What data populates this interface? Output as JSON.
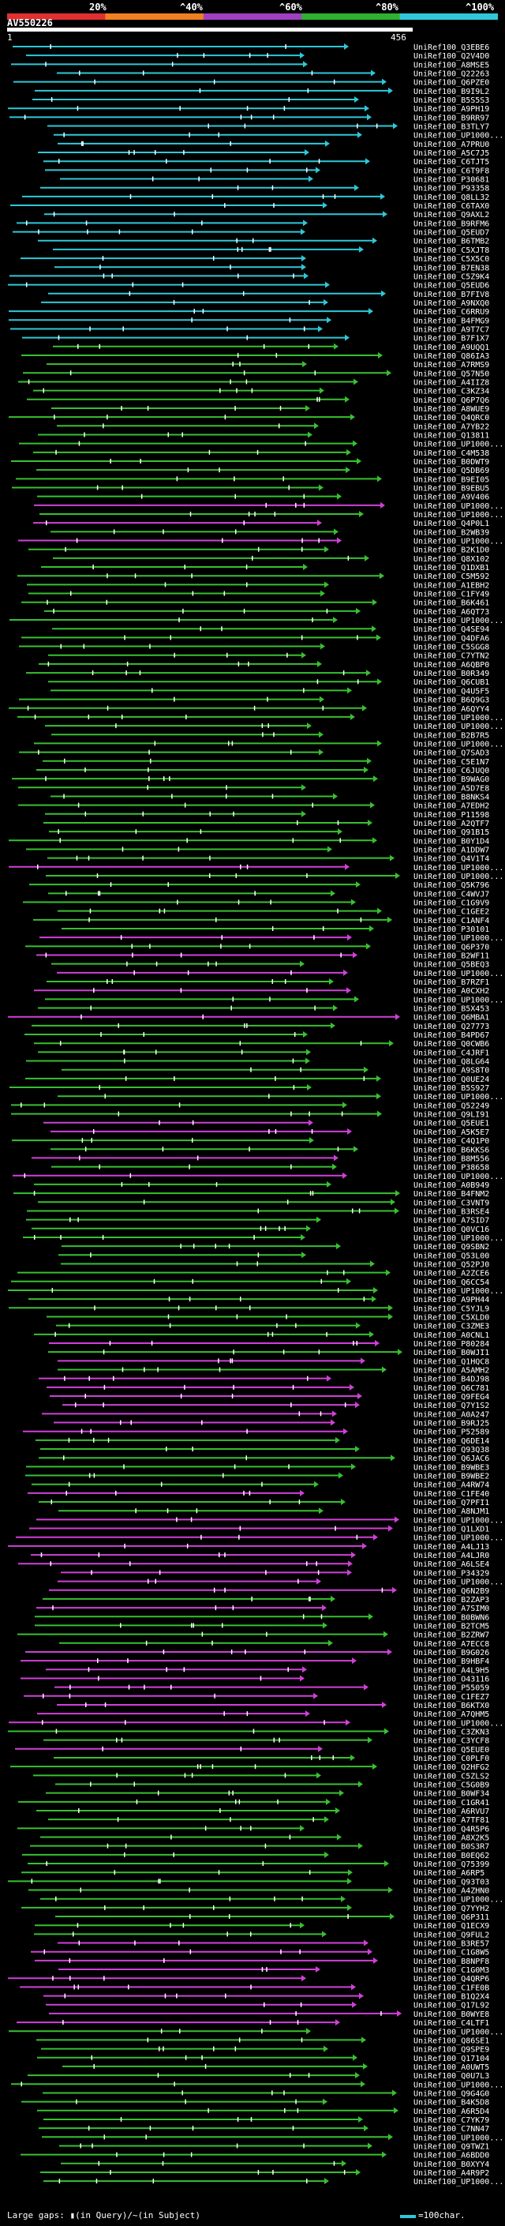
{
  "header": {
    "percent_labels": [
      "20%",
      "^40%",
      "^60%",
      "^80%",
      "^100%"
    ],
    "legend_colors": [
      "#e03030",
      "#f08020",
      "#a040c0",
      "#30b030",
      "#30c8d8"
    ],
    "query_name": "AV550226",
    "coord_start": "1",
    "coord_end": "456"
  },
  "footer": {
    "note": "Large gaps: ▮(in Query)/~(in Subject)",
    "scale_label": "=100char."
  },
  "colors": {
    "cyan": "#2ec8d8",
    "green": "#38c030",
    "magenta": "#d040d8",
    "tick": "#ffffff"
  },
  "hits": [
    {
      "label": "UniRef100_Q3EBE6",
      "color": "cyan"
    },
    {
      "label": "UniRef100_Q2V4D0",
      "color": "cyan"
    },
    {
      "label": "UniRef100_A8MSE5",
      "color": "cyan"
    },
    {
      "label": "UniRef100_Q22263",
      "color": "cyan"
    },
    {
      "label": "UniRef100_Q6PZE0",
      "color": "cyan"
    },
    {
      "label": "UniRef100_B9I9L2",
      "color": "cyan"
    },
    {
      "label": "UniRef100_B5S5S3",
      "color": "cyan"
    },
    {
      "label": "UniRef100_A9PH19",
      "color": "cyan"
    },
    {
      "label": "UniRef100_B9RR97",
      "color": "cyan"
    },
    {
      "label": "UniRef100_B3TLY7",
      "color": "cyan"
    },
    {
      "label": "UniRef100_UP1000...",
      "color": "cyan"
    },
    {
      "label": "UniRef100_A7PRU0",
      "color": "cyan"
    },
    {
      "label": "UniRef100_A5C7J5",
      "color": "cyan"
    },
    {
      "label": "UniRef100_C6TJT5",
      "color": "cyan"
    },
    {
      "label": "UniRef100_C6T9F8",
      "color": "cyan"
    },
    {
      "label": "UniRef100_P30681",
      "color": "cyan"
    },
    {
      "label": "UniRef100_P93358",
      "color": "cyan"
    },
    {
      "label": "UniRef100_Q8LL32",
      "color": "cyan"
    },
    {
      "label": "UniRef100_C6TAX0",
      "color": "cyan"
    },
    {
      "label": "UniRef100_Q9AXL2",
      "color": "cyan"
    },
    {
      "label": "UniRef100_B9RFM6",
      "color": "cyan"
    },
    {
      "label": "UniRef100_Q5EUD7",
      "color": "cyan"
    },
    {
      "label": "UniRef100_B6TMB2",
      "color": "cyan"
    },
    {
      "label": "UniRef100_C5XJT8",
      "color": "cyan"
    },
    {
      "label": "UniRef100_C5X5C0",
      "color": "cyan"
    },
    {
      "label": "UniRef100_B7EN38",
      "color": "cyan"
    },
    {
      "label": "UniRef100_C5Z9K4",
      "color": "cyan"
    },
    {
      "label": "UniRef100_Q5EUD6",
      "color": "cyan"
    },
    {
      "label": "UniRef100_B7FIV8",
      "color": "cyan"
    },
    {
      "label": "UniRef100_A9NXQ0",
      "color": "cyan"
    },
    {
      "label": "UniRef100_C6RRU9",
      "color": "cyan"
    },
    {
      "label": "UniRef100_B4FMG9",
      "color": "cyan"
    },
    {
      "label": "UniRef100_A9T7C7",
      "color": "cyan"
    },
    {
      "label": "UniRef100_B7F1X7",
      "color": "cyan"
    },
    {
      "label": "UniRef100_A9UQQ1",
      "color": "green"
    },
    {
      "label": "UniRef100_Q86IA3",
      "color": "green"
    },
    {
      "label": "UniRef100_A7RMS9",
      "color": "green"
    },
    {
      "label": "UniRef100_Q57N50",
      "color": "green"
    },
    {
      "label": "UniRef100_A4IIZ8",
      "color": "green"
    },
    {
      "label": "UniRef100_C3KZ34",
      "color": "green"
    },
    {
      "label": "UniRef100_Q6P7Q6",
      "color": "green"
    },
    {
      "label": "UniRef100_A8WUE9",
      "color": "green"
    },
    {
      "label": "UniRef100_Q4QRC0",
      "color": "green"
    },
    {
      "label": "UniRef100_A7YB22",
      "color": "green"
    },
    {
      "label": "UniRef100_Q13811",
      "color": "green"
    },
    {
      "label": "UniRef100_UP1000...",
      "color": "green"
    },
    {
      "label": "UniRef100_C4M538",
      "color": "green"
    },
    {
      "label": "UniRef100_B0DWT9",
      "color": "green"
    },
    {
      "label": "UniRef100_Q5DB69",
      "color": "green"
    },
    {
      "label": "UniRef100_B9EI05",
      "color": "green"
    },
    {
      "label": "UniRef100_B9EBU5",
      "color": "green"
    },
    {
      "label": "UniRef100_A9V406",
      "color": "green"
    },
    {
      "label": "UniRef100_UP1000...",
      "color": "magenta"
    },
    {
      "label": "UniRef100_UP1000...",
      "color": "green"
    },
    {
      "label": "UniRef100_Q4P0L1",
      "color": "magenta"
    },
    {
      "label": "UniRef100_B2WB39",
      "color": "green"
    },
    {
      "label": "UniRef100_UP1000...",
      "color": "magenta"
    },
    {
      "label": "UniRef100_B2K1D0",
      "color": "green"
    },
    {
      "label": "UniRef100_Q8X102",
      "color": "green"
    },
    {
      "label": "UniRef100_Q1DXB1",
      "color": "green"
    },
    {
      "label": "UniRef100_C5M592",
      "color": "green"
    },
    {
      "label": "UniRef100_A1EBH2",
      "color": "green"
    },
    {
      "label": "UniRef100_C1FY49",
      "color": "green"
    },
    {
      "label": "UniRef100_B6K461",
      "color": "green"
    },
    {
      "label": "UniRef100_A6QT73",
      "color": "green"
    },
    {
      "label": "UniRef100_UP1000...",
      "color": "green"
    },
    {
      "label": "UniRef100_Q4SE94",
      "color": "green"
    },
    {
      "label": "UniRef100_Q4DFA6",
      "color": "green"
    },
    {
      "label": "UniRef100_C5SGG8",
      "color": "green"
    },
    {
      "label": "UniRef100_C7YTN2",
      "color": "green"
    },
    {
      "label": "UniRef100_A6QBP0",
      "color": "green"
    },
    {
      "label": "UniRef100_B0R349",
      "color": "green"
    },
    {
      "label": "UniRef100_Q6CUB1",
      "color": "green"
    },
    {
      "label": "UniRef100_Q4U5F5",
      "color": "green"
    },
    {
      "label": "UniRef100_B6Q9G3",
      "color": "green"
    },
    {
      "label": "UniRef100_A6QYY4",
      "color": "green"
    },
    {
      "label": "UniRef100_UP1000...",
      "color": "green"
    },
    {
      "label": "UniRef100_UP1000...",
      "color": "green"
    },
    {
      "label": "UniRef100_B2B7R5",
      "color": "green"
    },
    {
      "label": "UniRef100_UP1000...",
      "color": "green"
    },
    {
      "label": "UniRef100_Q7SAD3",
      "color": "green"
    },
    {
      "label": "UniRef100_C5E1N7",
      "color": "green"
    },
    {
      "label": "UniRef100_C6JUQ0",
      "color": "green"
    },
    {
      "label": "UniRef100_B9WAG0",
      "color": "green"
    },
    {
      "label": "UniRef100_A5D7E8",
      "color": "green"
    },
    {
      "label": "UniRef100_B8NKS4",
      "color": "green"
    },
    {
      "label": "UniRef100_A7EDH2",
      "color": "green"
    },
    {
      "label": "UniRef100_P11598",
      "color": "green"
    },
    {
      "label": "UniRef100_A2QTF7",
      "color": "green"
    },
    {
      "label": "UniRef100_Q91B15",
      "color": "green"
    },
    {
      "label": "UniRef100_B0Y1D4",
      "color": "green"
    },
    {
      "label": "UniRef100_A1DDW7",
      "color": "green"
    },
    {
      "label": "UniRef100_Q4V1T4",
      "color": "green"
    },
    {
      "label": "UniRef100_UP1000...",
      "color": "magenta"
    },
    {
      "label": "UniRef100_UP1000...",
      "color": "green"
    },
    {
      "label": "UniRef100_Q5K796",
      "color": "green"
    },
    {
      "label": "UniRef100_C4WVJ7",
      "color": "green"
    },
    {
      "label": "UniRef100_C1G9V9",
      "color": "green"
    },
    {
      "label": "UniRef100_C1GEE2",
      "color": "green"
    },
    {
      "label": "UniRef100_C1ANF4",
      "color": "green"
    },
    {
      "label": "UniRef100_P30101",
      "color": "green"
    },
    {
      "label": "UniRef100_UP1000...",
      "color": "magenta"
    },
    {
      "label": "UniRef100_Q6P370",
      "color": "green"
    },
    {
      "label": "UniRef100_B2WF11",
      "color": "magenta"
    },
    {
      "label": "UniRef100_Q5BEQ3",
      "color": "green"
    },
    {
      "label": "UniRef100_UP1000...",
      "color": "magenta"
    },
    {
      "label": "UniRef100_B7RZF1",
      "color": "green"
    },
    {
      "label": "UniRef100_A0CXH2",
      "color": "magenta"
    },
    {
      "label": "UniRef100_UP1000...",
      "color": "green"
    },
    {
      "label": "UniRef100_B5X453",
      "color": "green"
    },
    {
      "label": "UniRef100_Q6MBA1",
      "color": "magenta"
    },
    {
      "label": "UniRef100_Q27773",
      "color": "green"
    },
    {
      "label": "UniRef100_B4PD67",
      "color": "green"
    },
    {
      "label": "UniRef100_Q0CWB6",
      "color": "green"
    },
    {
      "label": "UniRef100_C4JRF1",
      "color": "green"
    },
    {
      "label": "UniRef100_Q8LG64",
      "color": "green"
    },
    {
      "label": "UniRef100_A9S8T0",
      "color": "green"
    },
    {
      "label": "UniRef100_Q0UE24",
      "color": "green"
    },
    {
      "label": "UniRef100_B5S927",
      "color": "green"
    },
    {
      "label": "UniRef100_UP1000...",
      "color": "green"
    },
    {
      "label": "UniRef100_Q52249",
      "color": "green"
    },
    {
      "label": "UniRef100_Q9LI91",
      "color": "green"
    },
    {
      "label": "UniRef100_Q5EUE1",
      "color": "magenta"
    },
    {
      "label": "UniRef100_A5K5E7",
      "color": "magenta"
    },
    {
      "label": "UniRef100_C4Q1P0",
      "color": "green"
    },
    {
      "label": "UniRef100_B6KKS6",
      "color": "green"
    },
    {
      "label": "UniRef100_B8M556",
      "color": "magenta"
    },
    {
      "label": "UniRef100_P38658",
      "color": "green"
    },
    {
      "label": "UniRef100_UP1000...",
      "color": "magenta"
    },
    {
      "label": "UniRef100_A0B949",
      "color": "green"
    },
    {
      "label": "UniRef100_B4FNM2",
      "color": "green"
    },
    {
      "label": "UniRef100_C3VNT9",
      "color": "green"
    },
    {
      "label": "UniRef100_B3RSE4",
      "color": "green"
    },
    {
      "label": "UniRef100_A7SID7",
      "color": "green"
    },
    {
      "label": "UniRef100_Q0VC16",
      "color": "green"
    },
    {
      "label": "UniRef100_UP1000...",
      "color": "green"
    },
    {
      "label": "UniRef100_Q9SBN2",
      "color": "green"
    },
    {
      "label": "UniRef100_Q53L00",
      "color": "green"
    },
    {
      "label": "UniRef100_Q52PJ0",
      "color": "green"
    },
    {
      "label": "UniRef100_A2ZCE6",
      "color": "green"
    },
    {
      "label": "UniRef100_Q6CC54",
      "color": "green"
    },
    {
      "label": "UniRef100_UP1000...",
      "color": "green"
    },
    {
      "label": "UniRef100_A9PH44",
      "color": "green"
    },
    {
      "label": "UniRef100_C5YJL9",
      "color": "green"
    },
    {
      "label": "UniRef100_C5XLD0",
      "color": "green"
    },
    {
      "label": "UniRef100_C3ZME3",
      "color": "green"
    },
    {
      "label": "UniRef100_A0CNL1",
      "color": "green"
    },
    {
      "label": "UniRef100_P80284",
      "color": "magenta"
    },
    {
      "label": "UniRef100_B0WJI1",
      "color": "green"
    },
    {
      "label": "UniRef100_Q1HQC8",
      "color": "magenta"
    },
    {
      "label": "UniRef100_A5AMH2",
      "color": "green"
    },
    {
      "label": "UniRef100_B4DJ98",
      "color": "magenta"
    },
    {
      "label": "UniRef100_Q6C781",
      "color": "magenta"
    },
    {
      "label": "UniRef100_Q9FEG4",
      "color": "magenta"
    },
    {
      "label": "UniRef100_Q7Y1S2",
      "color": "magenta"
    },
    {
      "label": "UniRef100_A0A247",
      "color": "magenta"
    },
    {
      "label": "UniRef100_B9RJ25",
      "color": "magenta"
    },
    {
      "label": "UniRef100_P52589",
      "color": "magenta"
    },
    {
      "label": "UniRef100_Q6DE14",
      "color": "green"
    },
    {
      "label": "UniRef100_Q93Q38",
      "color": "green"
    },
    {
      "label": "UniRef100_Q6JAC6",
      "color": "green"
    },
    {
      "label": "UniRef100_B9WBE3",
      "color": "green"
    },
    {
      "label": "UniRef100_B9WBE2",
      "color": "green"
    },
    {
      "label": "UniRef100_A4RW74",
      "color": "green"
    },
    {
      "label": "UniRef100_C1FE40",
      "color": "magenta"
    },
    {
      "label": "UniRef100_Q7PFI1",
      "color": "green"
    },
    {
      "label": "UniRef100_A8NJM1",
      "color": "green"
    },
    {
      "label": "UniRef100_UP1000...",
      "color": "magenta"
    },
    {
      "label": "UniRef100_Q1LXD1",
      "color": "magenta"
    },
    {
      "label": "UniRef100_UP1000...",
      "color": "magenta"
    },
    {
      "label": "UniRef100_A4LJ13",
      "color": "magenta"
    },
    {
      "label": "UniRef100_A4LJR0",
      "color": "magenta"
    },
    {
      "label": "UniRef100_A6LSE4",
      "color": "magenta"
    },
    {
      "label": "UniRef100_P34329",
      "color": "magenta"
    },
    {
      "label": "UniRef100_UP1000...",
      "color": "magenta"
    },
    {
      "label": "UniRef100_Q6N2B9",
      "color": "magenta"
    },
    {
      "label": "UniRef100_B2ZAP3",
      "color": "green"
    },
    {
      "label": "UniRef100_A7SIM0",
      "color": "magenta"
    },
    {
      "label": "UniRef100_B0BWN6",
      "color": "green"
    },
    {
      "label": "UniRef100_B2TCM5",
      "color": "green"
    },
    {
      "label": "UniRef100_B2ZRW7",
      "color": "green"
    },
    {
      "label": "UniRef100_A7ECC8",
      "color": "green"
    },
    {
      "label": "UniRef100_B9G026",
      "color": "magenta"
    },
    {
      "label": "UniRef100_B9HBF4",
      "color": "magenta"
    },
    {
      "label": "UniRef100_A4L9H5",
      "color": "magenta"
    },
    {
      "label": "UniRef100_O43116",
      "color": "magenta"
    },
    {
      "label": "UniRef100_P55059",
      "color": "magenta"
    },
    {
      "label": "UniRef100_C1FEZ7",
      "color": "magenta"
    },
    {
      "label": "UniRef100_B6KTX0",
      "color": "magenta"
    },
    {
      "label": "UniRef100_A7QHM5",
      "color": "magenta"
    },
    {
      "label": "UniRef100_UP1000...",
      "color": "magenta"
    },
    {
      "label": "UniRef100_C3ZKN3",
      "color": "green"
    },
    {
      "label": "UniRef100_C3YCF8",
      "color": "green"
    },
    {
      "label": "UniRef100_Q5EUE0",
      "color": "magenta"
    },
    {
      "label": "UniRef100_C0PLF0",
      "color": "green"
    },
    {
      "label": "UniRef100_Q2HFG2",
      "color": "green"
    },
    {
      "label": "UniRef100_C5ZLS2",
      "color": "green"
    },
    {
      "label": "UniRef100_C5G0B9",
      "color": "green"
    },
    {
      "label": "UniRef100_B0WF34",
      "color": "green"
    },
    {
      "label": "UniRef100_C1GR41",
      "color": "green"
    },
    {
      "label": "UniRef100_A6RVU7",
      "color": "green"
    },
    {
      "label": "UniRef100_A7TF81",
      "color": "green"
    },
    {
      "label": "UniRef100_Q4R5P6",
      "color": "green"
    },
    {
      "label": "UniRef100_A8X2K5",
      "color": "green"
    },
    {
      "label": "UniRef100_B0S3R7",
      "color": "green"
    },
    {
      "label": "UniRef100_B0EQ62",
      "color": "green"
    },
    {
      "label": "UniRef100_Q75399",
      "color": "green"
    },
    {
      "label": "UniRef100_A6RP5",
      "color": "green"
    },
    {
      "label": "UniRef100_Q93T03",
      "color": "green"
    },
    {
      "label": "UniRef100_A4ZHN0",
      "color": "green"
    },
    {
      "label": "UniRef100_UP1000...",
      "color": "green"
    },
    {
      "label": "UniRef100_Q7YYH2",
      "color": "green"
    },
    {
      "label": "UniRef100_Q6P311",
      "color": "green"
    },
    {
      "label": "UniRef100_Q1ECX9",
      "color": "green"
    },
    {
      "label": "UniRef100_Q9FUL2",
      "color": "green"
    },
    {
      "label": "UniRef100_B3RE57",
      "color": "magenta"
    },
    {
      "label": "UniRef100_C1G8W5",
      "color": "magenta"
    },
    {
      "label": "UniRef100_B8NPF8",
      "color": "magenta"
    },
    {
      "label": "UniRef100_C1G0M3",
      "color": "magenta"
    },
    {
      "label": "UniRef100_Q4QRP6",
      "color": "magenta"
    },
    {
      "label": "UniRef100_C1FE0B",
      "color": "magenta"
    },
    {
      "label": "UniRef100_B1Q2X4",
      "color": "magenta"
    },
    {
      "label": "UniRef100_Q17L92",
      "color": "magenta"
    },
    {
      "label": "UniRef100_B0WYE8",
      "color": "magenta"
    },
    {
      "label": "UniRef100_C4LTF1",
      "color": "magenta"
    },
    {
      "label": "UniRef100_UP1000...",
      "color": "green"
    },
    {
      "label": "UniRef100_Q86SE1",
      "color": "green"
    },
    {
      "label": "UniRef100_Q9SPE9",
      "color": "green"
    },
    {
      "label": "UniRef100_Q17104",
      "color": "green"
    },
    {
      "label": "UniRef100_A0UWT5",
      "color": "green"
    },
    {
      "label": "UniRef100_Q0U7L3",
      "color": "green"
    },
    {
      "label": "UniRef100_UP1000...",
      "color": "green"
    },
    {
      "label": "UniRef100_Q9G4G0",
      "color": "green"
    },
    {
      "label": "UniRef100_B4K5D8",
      "color": "green"
    },
    {
      "label": "UniRef100_A6R5D4",
      "color": "green"
    },
    {
      "label": "UniRef100_C7YK79",
      "color": "green"
    },
    {
      "label": "UniRef100_C7NN47",
      "color": "green"
    },
    {
      "label": "UniRef100_UP1000...",
      "color": "green"
    },
    {
      "label": "UniRef100_Q9TWZ1",
      "color": "green"
    },
    {
      "label": "UniRef100_A6BDD0",
      "color": "green"
    },
    {
      "label": "UniRef100_B0XYY4",
      "color": "green"
    },
    {
      "label": "UniRef100_A4R9P2",
      "color": "green"
    },
    {
      "label": "UniRef100_UP1000...",
      "color": "green"
    }
  ]
}
